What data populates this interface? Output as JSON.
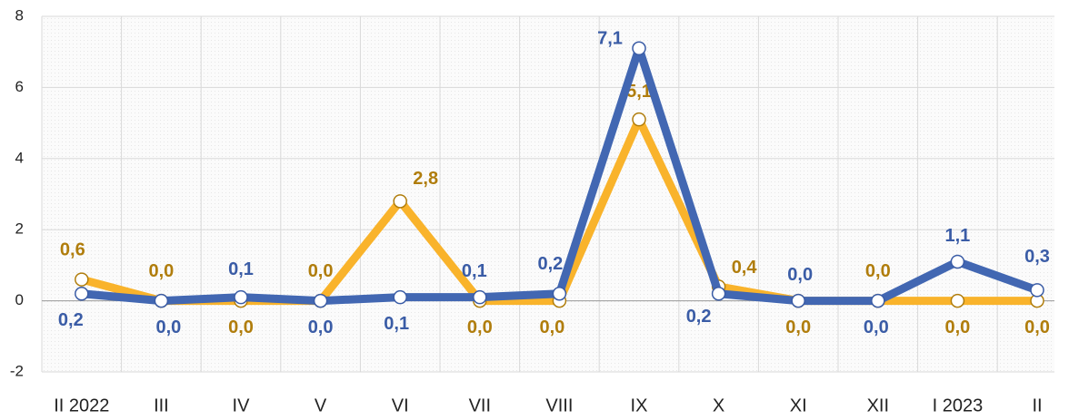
{
  "chart_data": {
    "type": "line",
    "categories": [
      "II 2022",
      "III",
      "IV",
      "V",
      "VI",
      "VII",
      "VIII",
      "IX",
      "X",
      "XI",
      "XII",
      "I 2023",
      "II"
    ],
    "series": [
      {
        "color": "#f9b32b",
        "values": [
          0.6,
          0,
          0,
          0,
          2.8,
          0,
          0,
          5.1,
          0.4,
          0,
          0,
          0,
          0
        ],
        "value_labels": [
          "0,6",
          "0,0",
          "0,0",
          "0,0",
          "2,8",
          "0,0",
          "0,0",
          "5,1",
          "0,4",
          "0,0",
          "0,0",
          "0,0",
          "0,0"
        ]
      },
      {
        "color": "#4267b2",
        "values": [
          0.2,
          0,
          0.1,
          0,
          0.1,
          0.1,
          0.2,
          7.1,
          0.2,
          0,
          0,
          1.1,
          0.3
        ],
        "value_labels": [
          "0,2",
          "0,0",
          "0,1",
          "0,0",
          "0,1",
          "0,1",
          "0,2",
          "7,1",
          "0,2",
          "0,0",
          "0,0",
          "1,1",
          "0,3"
        ]
      }
    ],
    "ylim": [
      -2,
      8
    ],
    "yticks": [
      -2,
      0,
      2,
      4,
      6,
      8
    ],
    "grid": true
  }
}
